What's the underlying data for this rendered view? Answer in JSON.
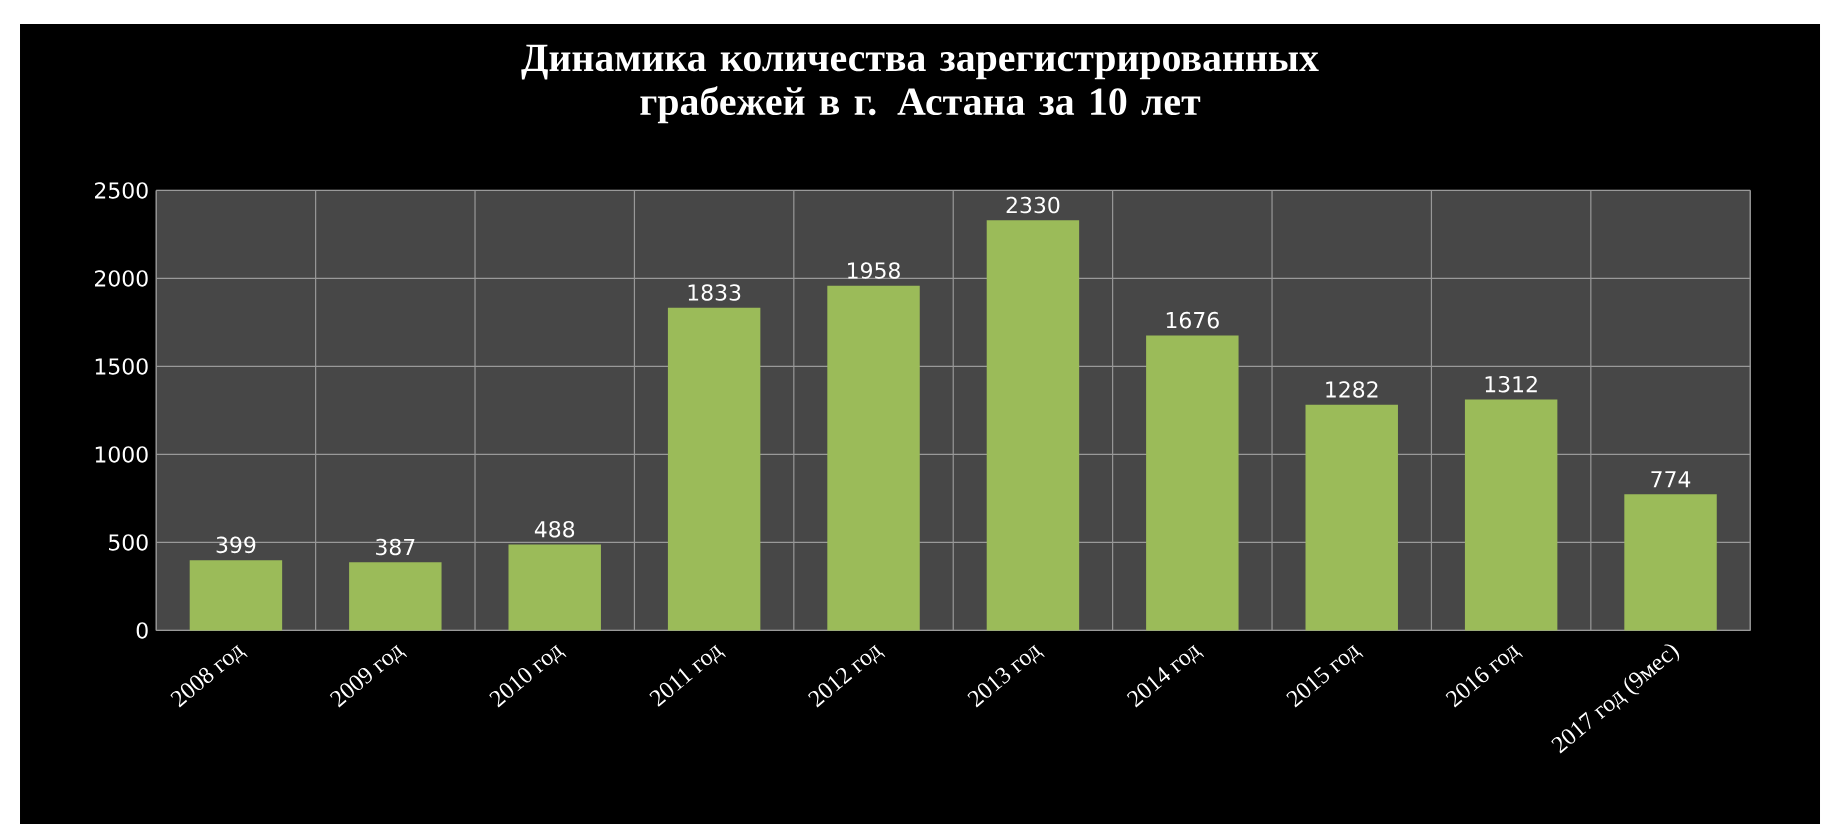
{
  "chart_data": {
    "type": "bar",
    "title": "Динамика количества зарегистрированных грабежей в г. Астана за 10 лет",
    "categories": [
      "2008 год",
      "2009 год",
      "2010 год",
      "2011 год",
      "2012 год",
      "2013 год",
      "2014 год",
      "2015 год",
      "2016 год",
      "2017 год (9мес)"
    ],
    "values": [
      399,
      387,
      488,
      1833,
      1958,
      2330,
      1676,
      1282,
      1312,
      774
    ],
    "color": "#9bbb59",
    "ylim": [
      0,
      2500
    ],
    "yticks": [
      0,
      500,
      1000,
      1500,
      2000,
      2500
    ],
    "grid": true,
    "data_labels": true
  }
}
